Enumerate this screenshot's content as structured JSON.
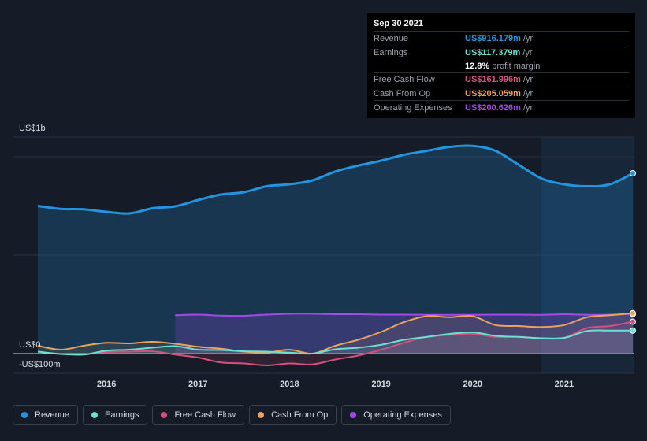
{
  "tooltip": {
    "date": "Sep 30 2021",
    "rows": [
      {
        "label": "Revenue",
        "value": "US$916.179m",
        "unit": "/yr",
        "color": "#2394df"
      },
      {
        "label": "Earnings",
        "value": "US$117.379m",
        "unit": "/yr",
        "color": "#6ce0d3"
      },
      {
        "label": "",
        "value": "12.8%",
        "unit": "profit margin",
        "color": "#ffffff"
      },
      {
        "label": "Free Cash Flow",
        "value": "US$161.996m",
        "unit": "/yr",
        "color": "#d1517f"
      },
      {
        "label": "Cash From Op",
        "value": "US$205.059m",
        "unit": "/yr",
        "color": "#e8a45d"
      },
      {
        "label": "Operating Expenses",
        "value": "US$200.626m",
        "unit": "/yr",
        "color": "#a14ae6"
      }
    ]
  },
  "legend": [
    {
      "label": "Revenue",
      "color": "#2394df"
    },
    {
      "label": "Earnings",
      "color": "#6ce0d3"
    },
    {
      "label": "Free Cash Flow",
      "color": "#d1517f"
    },
    {
      "label": "Cash From Op",
      "color": "#e8a45d"
    },
    {
      "label": "Operating Expenses",
      "color": "#a14ae6"
    }
  ],
  "chart_data": {
    "type": "area",
    "y_tick_labels": [
      "US$1b",
      "US$0",
      "-US$100m"
    ],
    "ylim": [
      -100,
      1100
    ],
    "xlim": [
      2015.25,
      2021.75
    ],
    "x_tick_labels": [
      "2016",
      "2017",
      "2018",
      "2019",
      "2020",
      "2021"
    ],
    "x_ticks": [
      2016,
      2017,
      2018,
      2019,
      2020,
      2021
    ],
    "highlight_start": 2020.75,
    "series": [
      {
        "name": "Revenue",
        "color": "#2394df",
        "x": [
          2015.25,
          2015.5,
          2015.75,
          2016.0,
          2016.25,
          2016.5,
          2016.75,
          2017.0,
          2017.25,
          2017.5,
          2017.75,
          2018.0,
          2018.25,
          2018.5,
          2018.75,
          2019.0,
          2019.25,
          2019.5,
          2019.75,
          2020.0,
          2020.25,
          2020.5,
          2020.75,
          2021.0,
          2021.25,
          2021.5,
          2021.75
        ],
        "y": [
          750,
          735,
          733,
          720,
          712,
          738,
          748,
          780,
          808,
          820,
          850,
          860,
          880,
          925,
          955,
          980,
          1010,
          1030,
          1050,
          1055,
          1030,
          960,
          890,
          860,
          850,
          860,
          916
        ]
      },
      {
        "name": "Earnings",
        "color": "#6ce0d3",
        "x": [
          2015.25,
          2015.5,
          2015.75,
          2016.0,
          2016.25,
          2016.5,
          2016.75,
          2017.0,
          2017.25,
          2017.5,
          2017.75,
          2018.0,
          2018.25,
          2018.5,
          2018.75,
          2019.0,
          2019.25,
          2019.5,
          2019.75,
          2020.0,
          2020.25,
          2020.5,
          2020.75,
          2021.0,
          2021.25,
          2021.5,
          2021.75
        ],
        "y": [
          10,
          -2,
          -5,
          15,
          20,
          30,
          38,
          20,
          18,
          12,
          10,
          5,
          0,
          22,
          30,
          45,
          70,
          85,
          100,
          108,
          90,
          85,
          78,
          80,
          115,
          117,
          117
        ]
      },
      {
        "name": "Free Cash Flow",
        "color": "#d1517f",
        "x": [
          2015.75,
          2016.0,
          2016.25,
          2016.5,
          2016.75,
          2017.0,
          2017.25,
          2017.5,
          2017.75,
          2018.0,
          2018.25,
          2018.5,
          2018.75,
          2019.0,
          2019.25,
          2019.5,
          2019.75,
          2020.0,
          2020.25,
          2020.5,
          2020.75,
          2021.0,
          2021.25,
          2021.5,
          2021.75
        ],
        "y": [
          -5,
          8,
          10,
          12,
          -5,
          -20,
          -45,
          -50,
          -60,
          -50,
          -55,
          -30,
          -10,
          20,
          55,
          85,
          95,
          100,
          85,
          85,
          78,
          80,
          130,
          140,
          162
        ]
      },
      {
        "name": "Cash From Op",
        "color": "#e8a45d",
        "x": [
          2015.25,
          2015.5,
          2015.75,
          2016.0,
          2016.25,
          2016.5,
          2016.75,
          2017.0,
          2017.25,
          2017.5,
          2017.75,
          2018.0,
          2018.25,
          2018.5,
          2018.75,
          2019.0,
          2019.25,
          2019.5,
          2019.75,
          2020.0,
          2020.25,
          2020.5,
          2020.75,
          2021.0,
          2021.25,
          2021.5,
          2021.75
        ],
        "y": [
          40,
          20,
          40,
          55,
          52,
          60,
          50,
          35,
          25,
          10,
          5,
          20,
          0,
          40,
          70,
          110,
          160,
          190,
          185,
          190,
          145,
          140,
          135,
          145,
          185,
          195,
          205
        ]
      },
      {
        "name": "Operating Expenses",
        "color": "#a14ae6",
        "x": [
          2016.75,
          2017.0,
          2017.25,
          2017.5,
          2017.75,
          2018.0,
          2018.25,
          2018.5,
          2018.75,
          2019.0,
          2019.25,
          2019.5,
          2019.75,
          2020.0,
          2020.25,
          2020.5,
          2020.75,
          2021.0,
          2021.25,
          2021.5,
          2021.75
        ],
        "y": [
          195,
          198,
          193,
          192,
          198,
          202,
          202,
          200,
          200,
          198,
          198,
          197,
          197,
          197,
          198,
          198,
          197,
          200,
          197,
          198,
          201
        ]
      }
    ]
  }
}
